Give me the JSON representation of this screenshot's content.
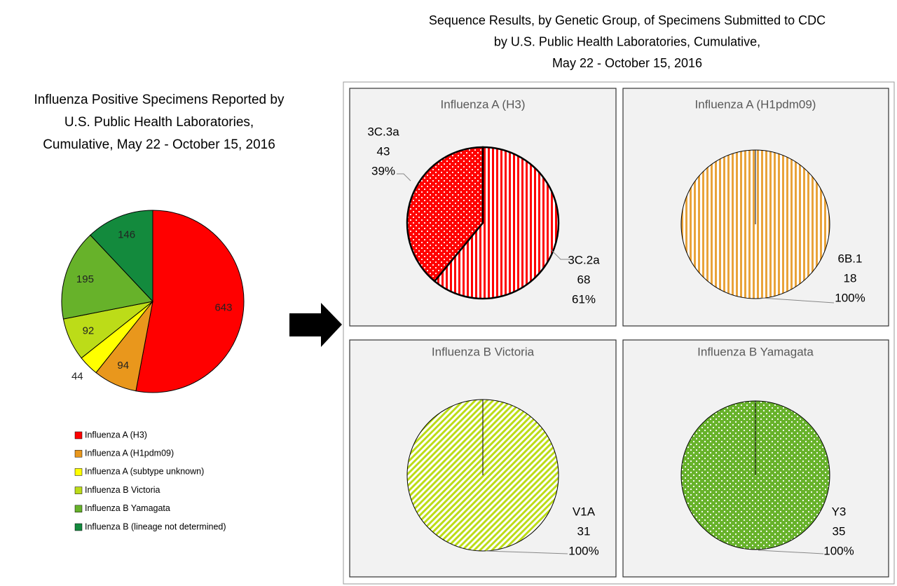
{
  "panel_title": [
    "Sequence Results, by Genetic Group, of Specimens Submitted to CDC",
    "by U.S. Public Health Laboratories, Cumulative,",
    "May 22 - October 15, 2016"
  ],
  "chart_data": [
    {
      "type": "pie",
      "title": [
        "Influenza Positive Specimens Reported by",
        "U.S. Public Health Laboratories,",
        "Cumulative, May 22 - October 15, 2016"
      ],
      "categories": [
        "Influenza A (H3)",
        "Influenza A (H1pdm09)",
        "Influenza A (subtype unknown)",
        "Influenza B Victoria",
        "Influenza B Yamagata",
        "Influenza B (lineage not determined)"
      ],
      "values": [
        643,
        94,
        44,
        92,
        195,
        146
      ],
      "colors": [
        "#ff0000",
        "#e9971c",
        "#ffff00",
        "#bcdc18",
        "#67b22a",
        "#138a3d"
      ],
      "legend": "bottom"
    },
    {
      "type": "pie",
      "title": "Influenza A (H3)",
      "categories": [
        "3C.2a",
        "3C.3a"
      ],
      "counts": [
        68,
        43
      ],
      "values": [
        61,
        39
      ],
      "value_labels": [
        "61%",
        "39%"
      ],
      "colors": [
        "#ff0000",
        "#ff0000"
      ],
      "patterns": [
        "vertical-stripes",
        "dots"
      ]
    },
    {
      "type": "pie",
      "title": "Influenza A (H1pdm09)",
      "categories": [
        "6B.1"
      ],
      "counts": [
        18
      ],
      "values": [
        100
      ],
      "value_labels": [
        "100%"
      ],
      "colors": [
        "#e9a33a"
      ],
      "patterns": [
        "vertical-stripes"
      ]
    },
    {
      "type": "pie",
      "title": "Influenza B Victoria",
      "categories": [
        "V1A"
      ],
      "counts": [
        31
      ],
      "values": [
        100
      ],
      "value_labels": [
        "100%"
      ],
      "colors": [
        "#bcdc18"
      ],
      "patterns": [
        "diagonal-stripes"
      ]
    },
    {
      "type": "pie",
      "title": "Influenza B Yamagata",
      "categories": [
        "Y3"
      ],
      "counts": [
        35
      ],
      "values": [
        100
      ],
      "value_labels": [
        "100%"
      ],
      "colors": [
        "#67b22a"
      ],
      "patterns": [
        "dots"
      ]
    }
  ]
}
